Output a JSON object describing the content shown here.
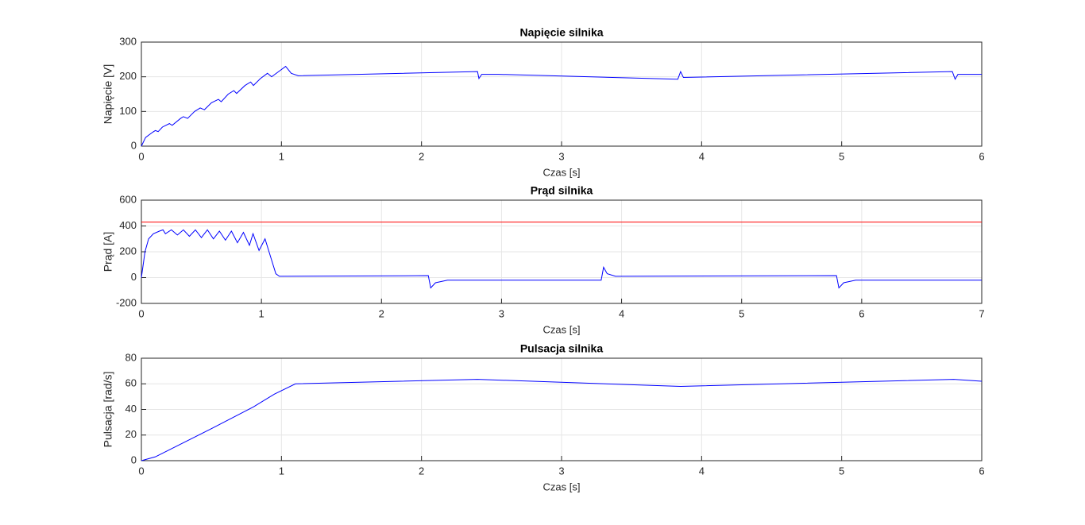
{
  "chart_data": [
    {
      "type": "line",
      "title": "Napięcie silnika",
      "xlabel": "Czas [s]",
      "ylabel": "Napięcie [V]",
      "xlim": [
        0,
        6
      ],
      "ylim": [
        0,
        300
      ],
      "xticks": [
        0,
        1,
        2,
        3,
        4,
        5,
        6
      ],
      "yticks": [
        0,
        100,
        200,
        300
      ],
      "grid": true,
      "series": [
        {
          "color": "#0000ff",
          "x": [
            0,
            0.03,
            0.08,
            0.1,
            0.12,
            0.15,
            0.2,
            0.22,
            0.28,
            0.3,
            0.33,
            0.38,
            0.42,
            0.45,
            0.5,
            0.55,
            0.57,
            0.62,
            0.66,
            0.68,
            0.74,
            0.78,
            0.8,
            0.85,
            0.9,
            0.93,
            0.98,
            1.03,
            1.07,
            1.12,
            2.4,
            2.41,
            2.43,
            2.55,
            3.83,
            3.85,
            3.87,
            5.79,
            5.81,
            5.83,
            6
          ],
          "values": [
            0,
            25,
            40,
            45,
            42,
            55,
            65,
            60,
            80,
            85,
            80,
            100,
            110,
            105,
            125,
            135,
            128,
            150,
            160,
            152,
            175,
            185,
            175,
            195,
            210,
            200,
            215,
            230,
            210,
            203,
            215,
            195,
            207,
            207,
            193,
            215,
            198,
            215,
            193,
            207,
            207
          ]
        }
      ]
    },
    {
      "type": "line",
      "title": "Prąd silnika",
      "xlabel": "Czas [s]",
      "ylabel": "Prąd [A]",
      "xlim": [
        0,
        7
      ],
      "ylim": [
        -200,
        600
      ],
      "xticks": [
        0,
        1,
        2,
        3,
        4,
        5,
        6,
        7
      ],
      "yticks": [
        -200,
        0,
        200,
        400,
        600
      ],
      "grid": true,
      "series": [
        {
          "color": "#ff0000",
          "x": [
            0,
            7
          ],
          "values": [
            430,
            430
          ]
        },
        {
          "color": "#0000ff",
          "x": [
            0,
            0.03,
            0.06,
            0.1,
            0.15,
            0.18,
            0.2,
            0.25,
            0.3,
            0.35,
            0.4,
            0.45,
            0.5,
            0.55,
            0.6,
            0.65,
            0.7,
            0.75,
            0.8,
            0.85,
            0.9,
            0.93,
            0.98,
            1.03,
            1.08,
            1.12,
            1.15,
            2.39,
            2.41,
            2.45,
            2.55,
            3.83,
            3.85,
            3.88,
            3.95,
            5.79,
            5.81,
            5.85,
            5.95,
            7
          ],
          "values": [
            0,
            200,
            300,
            340,
            360,
            370,
            340,
            370,
            330,
            370,
            320,
            370,
            310,
            370,
            300,
            360,
            290,
            360,
            270,
            350,
            250,
            340,
            210,
            300,
            150,
            30,
            10,
            15,
            -80,
            -40,
            -20,
            -20,
            80,
            30,
            10,
            15,
            -80,
            -40,
            -20,
            -20
          ]
        }
      ]
    },
    {
      "type": "line",
      "title": "Pulsacja silnika",
      "xlabel": "Czas [s]",
      "ylabel": "Pulsacja [rad/s]",
      "xlim": [
        0,
        6
      ],
      "ylim": [
        0,
        80
      ],
      "xticks": [
        0,
        1,
        2,
        3,
        4,
        5,
        6
      ],
      "yticks": [
        0,
        20,
        40,
        60,
        80
      ],
      "grid": true,
      "series": [
        {
          "color": "#0000ff",
          "x": [
            0,
            0.1,
            0.5,
            0.8,
            0.95,
            1.1,
            2.4,
            3.85,
            5.8,
            6
          ],
          "values": [
            0,
            3,
            25,
            42,
            52,
            60,
            63.5,
            58,
            63.5,
            62
          ]
        }
      ]
    }
  ]
}
